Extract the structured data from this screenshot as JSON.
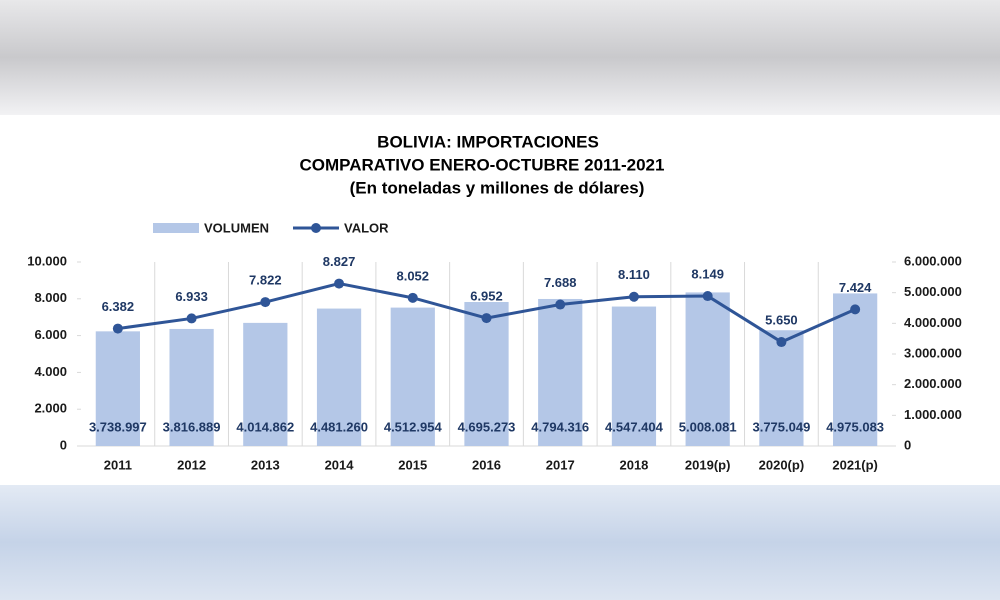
{
  "chart_data": {
    "type": "bar-line",
    "title": [
      "BOLIVIA:  IMPORTACIONES",
      "COMPARATIVO ENERO-OCTUBRE 2011-2021",
      "(En toneladas y millones de dólares)"
    ],
    "categories": [
      "2011",
      "2012",
      "2013",
      "2014",
      "2015",
      "2016",
      "2017",
      "2018",
      "2019(p)",
      "2020(p)",
      "2021(p)"
    ],
    "series": [
      {
        "name": "VOLUMEN",
        "type": "bar",
        "color": "#b4c7e7",
        "axis": "y2",
        "values": [
          3738997,
          3816889,
          4014862,
          4481260,
          4512954,
          4695273,
          4794316,
          4547404,
          5008081,
          3775049,
          4975083
        ],
        "value_labels": [
          "3.738.997",
          "3.816.889",
          "4.014.862",
          "4.481.260",
          "4.512.954",
          "4.695.273",
          "4.794.316",
          "4.547.404",
          "5.008.081",
          "3.775.049",
          "4.975.083"
        ]
      },
      {
        "name": "VALOR",
        "type": "line",
        "color": "#2f5597",
        "axis": "y",
        "values": [
          6382,
          6933,
          7822,
          8827,
          8052,
          6952,
          7688,
          8110,
          8149,
          5650,
          7424
        ],
        "value_labels": [
          "6.382",
          "6.933",
          "7.822",
          "8.827",
          "8.052",
          "6.952",
          "7.688",
          "8.110",
          "8.149",
          "5.650",
          "7.424"
        ]
      }
    ],
    "ylim": [
      0,
      10000
    ],
    "yticks": [
      0,
      {
        "value": 2000,
        "label": "2.000"
      },
      {
        "value": 4000,
        "label": "4.000"
      },
      {
        "value": 6000,
        "label": "6.000"
      },
      {
        "value": 8000,
        "label": "8.000"
      },
      {
        "value": 10000,
        "label": "10.000"
      }
    ],
    "y2lim": [
      0,
      6000000
    ],
    "y2ticks": [
      0,
      {
        "value": 1000000,
        "label": "1.000.000"
      },
      {
        "value": 2000000,
        "label": "2.000.000"
      },
      {
        "value": 3000000,
        "label": "3.000.000"
      },
      {
        "value": 4000000,
        "label": "4.000.000"
      },
      {
        "value": 5000000,
        "label": "5.000.000"
      },
      {
        "value": 6000000,
        "label": "6.000.000"
      }
    ],
    "legend": "top-left"
  }
}
